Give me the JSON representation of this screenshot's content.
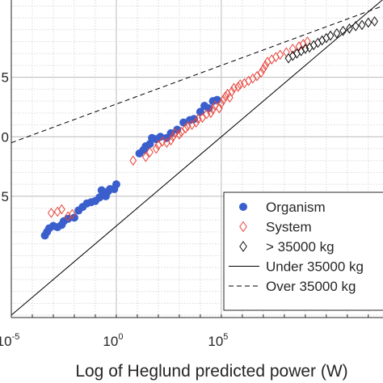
{
  "chart_data": {
    "type": "scatter",
    "title": "",
    "xlabel": "Log of Heglund predicted power (W)",
    "ylabel": "",
    "x_scale": "log10",
    "y_scale": "log10",
    "xlim_exp": [
      -5,
      12.7
    ],
    "ylim_exp": [
      -5.2,
      21.5
    ],
    "grid": true,
    "legend_position": "lower-right",
    "x_ticks": [
      {
        "base": "10",
        "exp": "-5",
        "value_exp": -5
      },
      {
        "base": "10",
        "exp": "0",
        "value_exp": 0
      },
      {
        "base": "10",
        "exp": "5",
        "value_exp": 5
      }
    ],
    "y_ticks": [
      {
        "label": "5",
        "value_exp": 15
      },
      {
        "label": "0",
        "value_exp": 10
      },
      {
        "label": "5",
        "value_exp": 5
      }
    ],
    "series": [
      {
        "name": "Organism",
        "marker": "filled-circle",
        "color": "#3a5fcd",
        "points_exp": [
          [
            -3.4,
            1.7
          ],
          [
            -3.3,
            2.0
          ],
          [
            -3.2,
            2.3
          ],
          [
            -3.0,
            2.5
          ],
          [
            -2.8,
            2.4
          ],
          [
            -2.6,
            2.6
          ],
          [
            -2.5,
            2.9
          ],
          [
            -2.3,
            3.1
          ],
          [
            -2.0,
            3.2
          ],
          [
            -1.8,
            3.8
          ],
          [
            -1.6,
            4.1
          ],
          [
            -1.4,
            4.4
          ],
          [
            -1.2,
            4.5
          ],
          [
            -1.0,
            4.6
          ],
          [
            -0.8,
            4.9
          ],
          [
            -0.7,
            5.5
          ],
          [
            -0.6,
            5.2
          ],
          [
            -0.5,
            5.0
          ],
          [
            -0.4,
            5.4
          ],
          [
            -0.3,
            5.6
          ],
          [
            -0.1,
            5.6
          ],
          [
            0.0,
            6.0
          ],
          [
            1.1,
            8.6
          ],
          [
            1.3,
            8.9
          ],
          [
            1.4,
            9.2
          ],
          [
            1.6,
            9.4
          ],
          [
            1.7,
            9.9
          ],
          [
            1.9,
            9.8
          ],
          [
            2.1,
            10.0
          ],
          [
            2.4,
            9.9
          ],
          [
            2.6,
            10.3
          ],
          [
            2.9,
            10.6
          ],
          [
            3.2,
            11.2
          ],
          [
            3.5,
            11.4
          ],
          [
            3.7,
            11.5
          ],
          [
            4.0,
            12.1
          ],
          [
            4.2,
            12.6
          ],
          [
            4.4,
            12.4
          ],
          [
            4.6,
            13.0
          ],
          [
            4.8,
            13.1
          ]
        ]
      },
      {
        "name": "System",
        "marker": "open-diamond",
        "color": "#e8443a",
        "points_exp": [
          [
            -3.1,
            3.6
          ],
          [
            -2.8,
            3.7
          ],
          [
            -2.6,
            3.9
          ],
          [
            -2.3,
            3.3
          ],
          [
            -2.1,
            3.5
          ],
          [
            0.8,
            8.0
          ],
          [
            1.4,
            8.3
          ],
          [
            1.6,
            8.7
          ],
          [
            1.9,
            9.0
          ],
          [
            2.0,
            9.3
          ],
          [
            2.2,
            9.6
          ],
          [
            2.4,
            9.5
          ],
          [
            2.6,
            9.7
          ],
          [
            2.7,
            10.0
          ],
          [
            2.8,
            10.3
          ],
          [
            3.0,
            10.2
          ],
          [
            3.1,
            10.4
          ],
          [
            3.3,
            10.7
          ],
          [
            3.4,
            10.9
          ],
          [
            3.6,
            11.0
          ],
          [
            3.8,
            11.2
          ],
          [
            3.9,
            11.5
          ],
          [
            4.1,
            11.6
          ],
          [
            4.3,
            11.9
          ],
          [
            4.5,
            12.0
          ],
          [
            4.6,
            12.3
          ],
          [
            4.7,
            12.6
          ],
          [
            4.9,
            12.4
          ],
          [
            5.0,
            12.8
          ],
          [
            5.1,
            13.1
          ],
          [
            5.2,
            13.4
          ],
          [
            5.3,
            13.6
          ],
          [
            5.4,
            13.3
          ],
          [
            5.5,
            13.8
          ],
          [
            5.6,
            14.1
          ],
          [
            5.8,
            14.2
          ],
          [
            5.9,
            14.4
          ],
          [
            6.1,
            14.5
          ],
          [
            6.3,
            14.7
          ],
          [
            6.5,
            14.9
          ],
          [
            6.7,
            15.1
          ],
          [
            6.9,
            15.4
          ],
          [
            7.0,
            15.7
          ],
          [
            7.1,
            16.0
          ],
          [
            7.2,
            16.3
          ],
          [
            7.4,
            16.5
          ],
          [
            7.6,
            16.7
          ],
          [
            7.8,
            16.9
          ],
          [
            8.1,
            17.1
          ],
          [
            8.4,
            17.4
          ],
          [
            8.7,
            17.6
          ],
          [
            8.9,
            17.8
          ],
          [
            9.1,
            18.0
          ]
        ]
      },
      {
        "name": "> 35000 kg",
        "marker": "open-diamond",
        "color": "#111111",
        "points_exp": [
          [
            8.2,
            16.6
          ],
          [
            8.4,
            16.8
          ],
          [
            8.6,
            17.0
          ],
          [
            8.8,
            17.2
          ],
          [
            9.0,
            17.4
          ],
          [
            9.2,
            17.5
          ],
          [
            9.4,
            17.7
          ],
          [
            9.6,
            17.9
          ],
          [
            9.8,
            18.1
          ],
          [
            10.0,
            18.3
          ],
          [
            10.2,
            18.5
          ],
          [
            10.5,
            18.7
          ],
          [
            10.8,
            18.9
          ],
          [
            11.1,
            19.1
          ],
          [
            11.4,
            19.3
          ],
          [
            11.7,
            19.4
          ],
          [
            12.0,
            19.6
          ],
          [
            12.3,
            19.7
          ]
        ]
      }
    ],
    "fit_lines": [
      {
        "name": "Under 35000 kg",
        "style": "solid",
        "color": "#000000",
        "x0_exp": -5,
        "y0_exp": -5.0,
        "slope": 1.5
      },
      {
        "name": "Over 35000 kg",
        "style": "dashed",
        "color": "#000000",
        "x0_exp": -5,
        "y0_exp": 9.5,
        "slope": 0.65
      }
    ]
  }
}
